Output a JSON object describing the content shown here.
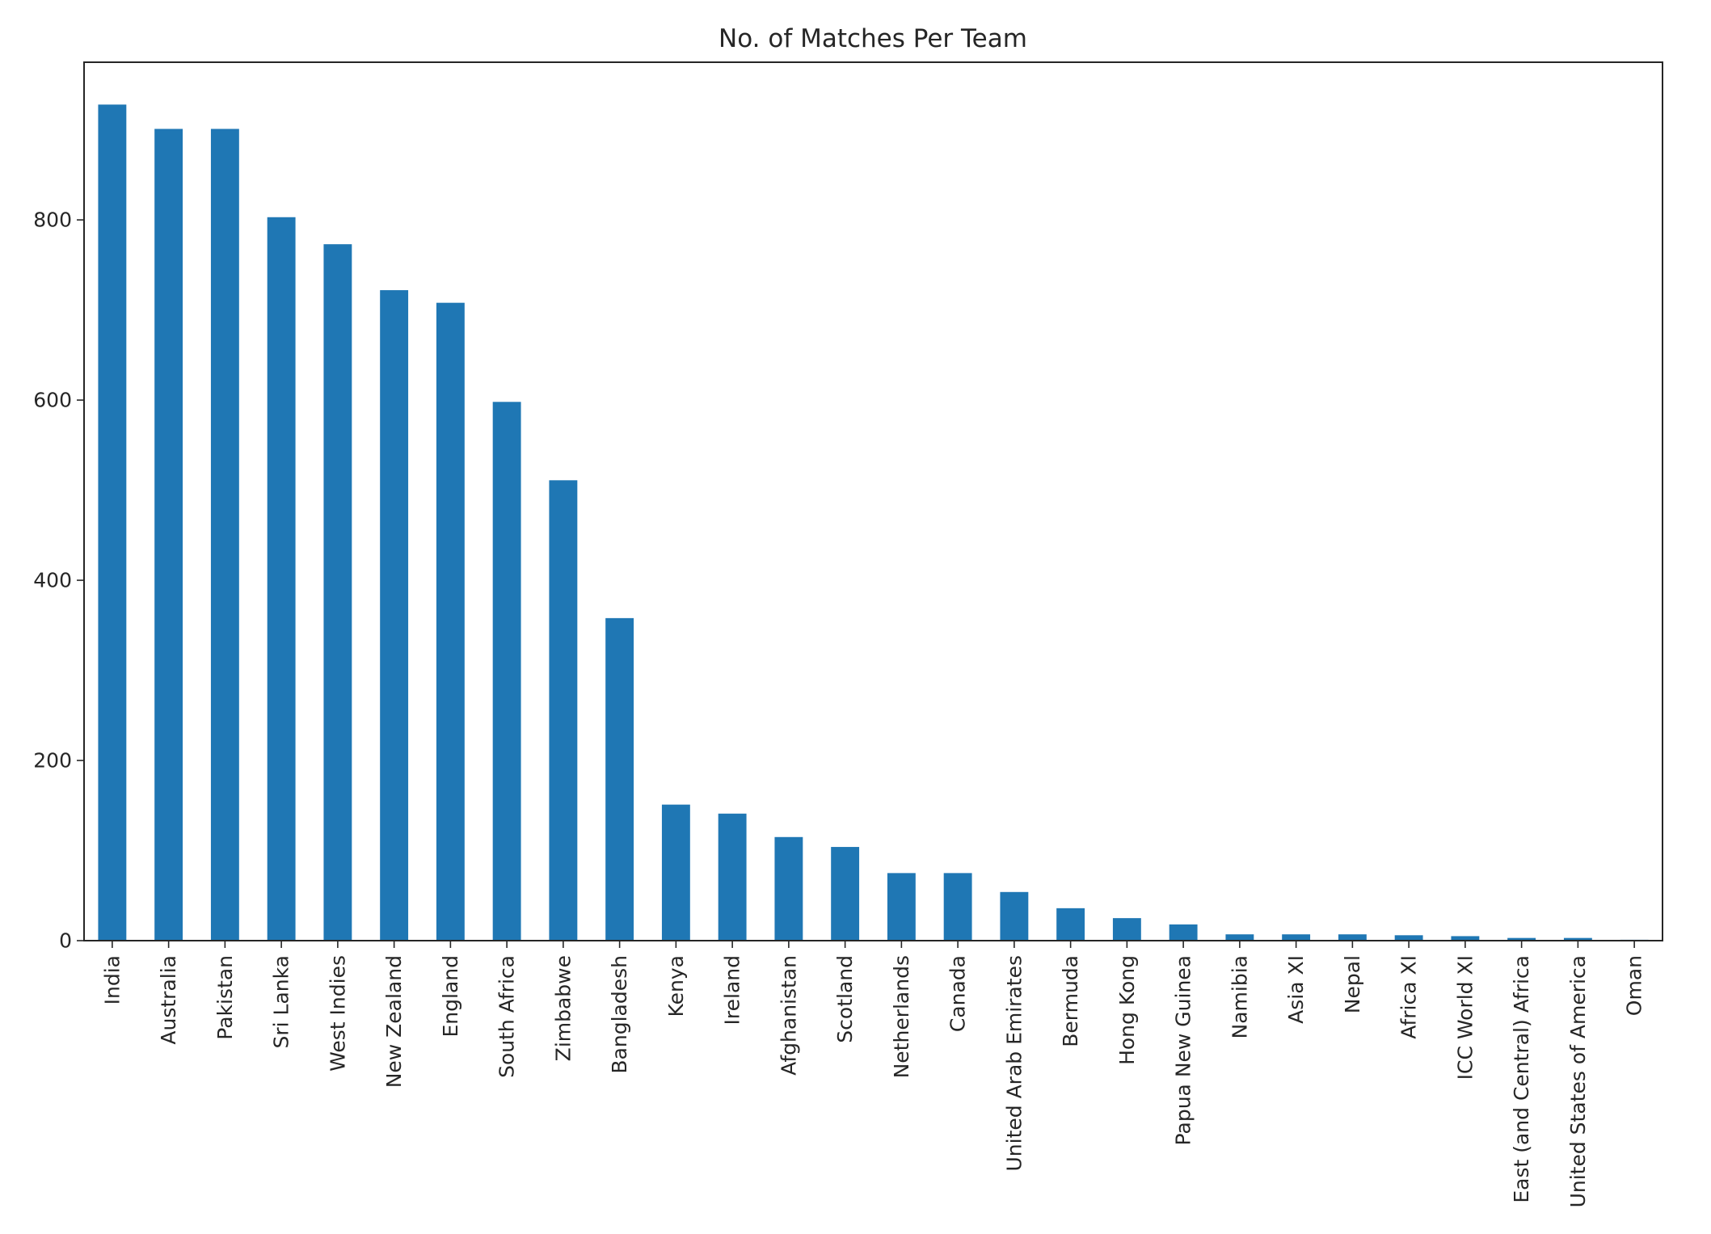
{
  "chart_data": {
    "type": "bar",
    "title": "No. of Matches Per Team",
    "xlabel": "",
    "ylabel": "",
    "ylim": [
      0,
      975
    ],
    "yticks": [
      0,
      200,
      400,
      600,
      800
    ],
    "grid": false,
    "legend": "none",
    "color": "#1f77b4",
    "categories": [
      "India",
      "Australia",
      "Pakistan",
      "Sri Lanka",
      "West Indies",
      "New Zealand",
      "England",
      "South Africa",
      "Zimbabwe",
      "Bangladesh",
      "Kenya",
      "Ireland",
      "Afghanistan",
      "Scotland",
      "Netherlands",
      "Canada",
      "United Arab Emirates",
      "Bermuda",
      "Hong Kong",
      "Papua New Guinea",
      "Namibia",
      "Asia XI",
      "Nepal",
      "Africa XI",
      "ICC World XI",
      "East (and Central) Africa",
      "United States of America",
      "Oman"
    ],
    "values": [
      928,
      901,
      901,
      803,
      773,
      722,
      708,
      598,
      511,
      358,
      151,
      141,
      115,
      104,
      75,
      75,
      54,
      36,
      25,
      18,
      7,
      7,
      7,
      6,
      5,
      3,
      3,
      1
    ]
  }
}
